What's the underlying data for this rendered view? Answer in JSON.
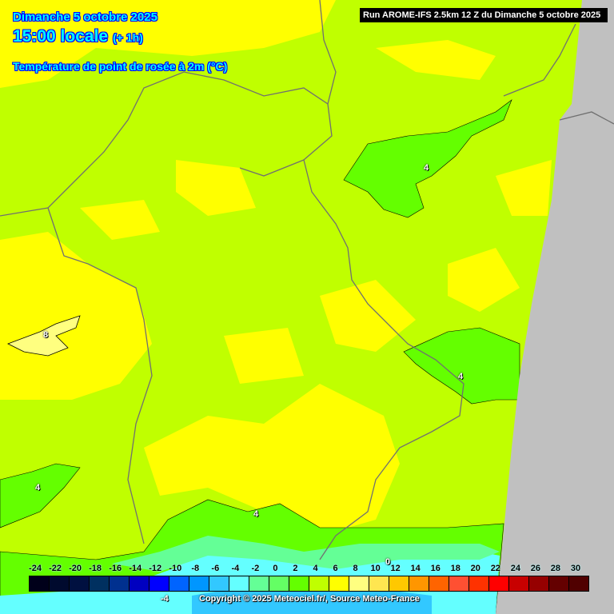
{
  "header": {
    "date": "Dimanche 5 octobre 2025",
    "time": "15:00 locale",
    "offset": "(+ 1h)",
    "parameter": "Température de point de rosée à 2m (°C)"
  },
  "run_info": "Run AROME-IFS 2.5km 12 Z du Dimanche 5 octobre 2025",
  "copyright": "Copyright © 2025 Meteociel.fr/, Source Meteo-France",
  "contour_labels": [
    "4",
    "4",
    "8",
    "4",
    "4",
    "0",
    "-4"
  ],
  "legend": {
    "ticks": [
      "-24",
      "-22",
      "-20",
      "-18",
      "-16",
      "-14",
      "-12",
      "-10",
      "-8",
      "-6",
      "-4",
      "-2",
      "0",
      "2",
      "4",
      "6",
      "8",
      "10",
      "12",
      "14",
      "16",
      "18",
      "20",
      "22",
      "24",
      "26",
      "28",
      "30"
    ],
    "colors": [
      "#00001a",
      "#000a2e",
      "#001040",
      "#003060",
      "#00308f",
      "#0000c0",
      "#0000ff",
      "#0064ff",
      "#0096ff",
      "#32c8ff",
      "#64ffff",
      "#64ff96",
      "#64ff64",
      "#64ff00",
      "#c0ff00",
      "#ffff00",
      "#ffff80",
      "#ffe650",
      "#ffc800",
      "#ff9600",
      "#ff6400",
      "#ff5032",
      "#ff3200",
      "#ff0000",
      "#c80000",
      "#960000",
      "#640000",
      "#500000"
    ]
  },
  "colors": {
    "no_data": "#c0c0c0",
    "title_text": "#00ffff",
    "title_outline": "#0000ff"
  }
}
